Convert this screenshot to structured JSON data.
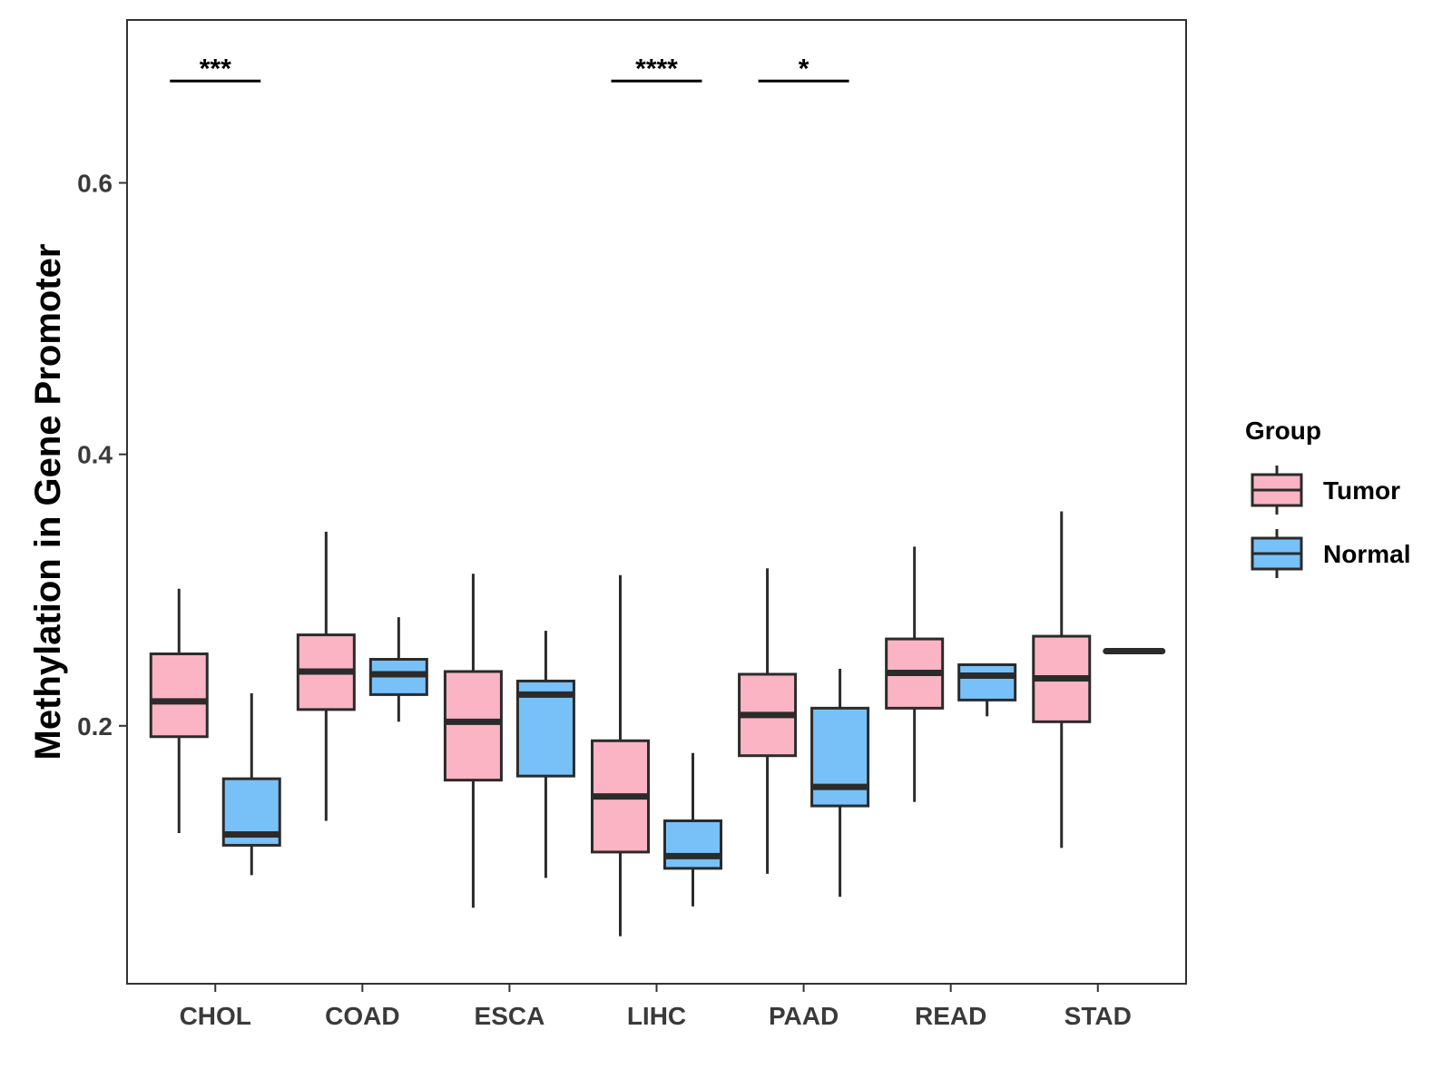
{
  "chart_data": {
    "type": "boxplot",
    "title": "",
    "xlabel": "",
    "ylabel": "Methylation in Gene Promoter",
    "ylim": [
      0.01,
      0.72
    ],
    "yticks": [
      "0.2",
      "0.4",
      "0.6"
    ],
    "ytick_values": [
      0.2,
      0.4,
      0.6
    ],
    "grid": false,
    "categories": [
      "CHOL",
      "COAD",
      "ESCA",
      "LIHC",
      "PAAD",
      "READ",
      "STAD"
    ],
    "colors": {
      "Tumor": "#FBB4C3",
      "Normal": "#78C1F8",
      "outline": "#2B2B2B"
    },
    "legend": {
      "title": "Group",
      "position": "right",
      "entries": [
        "Tumor",
        "Normal"
      ]
    },
    "series": [
      {
        "name": "Tumor",
        "boxes": [
          {
            "category": "CHOL",
            "min": 0.121,
            "q1": 0.192,
            "median": 0.218,
            "q3": 0.253,
            "max": 0.301
          },
          {
            "category": "COAD",
            "min": 0.13,
            "q1": 0.212,
            "median": 0.24,
            "q3": 0.267,
            "max": 0.343
          },
          {
            "category": "ESCA",
            "min": 0.066,
            "q1": 0.16,
            "median": 0.203,
            "q3": 0.24,
            "max": 0.312
          },
          {
            "category": "LIHC",
            "min": 0.045,
            "q1": 0.107,
            "median": 0.148,
            "q3": 0.189,
            "max": 0.311
          },
          {
            "category": "PAAD",
            "min": 0.091,
            "q1": 0.178,
            "median": 0.208,
            "q3": 0.238,
            "max": 0.316
          },
          {
            "category": "READ",
            "min": 0.144,
            "q1": 0.213,
            "median": 0.239,
            "q3": 0.264,
            "max": 0.332
          },
          {
            "category": "STAD",
            "min": 0.11,
            "q1": 0.203,
            "median": 0.235,
            "q3": 0.266,
            "max": 0.358
          }
        ]
      },
      {
        "name": "Normal",
        "boxes": [
          {
            "category": "CHOL",
            "min": 0.09,
            "q1": 0.112,
            "median": 0.12,
            "q3": 0.161,
            "max": 0.224
          },
          {
            "category": "COAD",
            "min": 0.203,
            "q1": 0.223,
            "median": 0.238,
            "q3": 0.249,
            "max": 0.28
          },
          {
            "category": "ESCA",
            "min": 0.088,
            "q1": 0.163,
            "median": 0.223,
            "q3": 0.233,
            "max": 0.27
          },
          {
            "category": "LIHC",
            "min": 0.067,
            "q1": 0.095,
            "median": 0.104,
            "q3": 0.13,
            "max": 0.18
          },
          {
            "category": "PAAD",
            "min": 0.074,
            "q1": 0.141,
            "median": 0.155,
            "q3": 0.213,
            "max": 0.242
          },
          {
            "category": "READ",
            "min": 0.207,
            "q1": 0.219,
            "median": 0.237,
            "q3": 0.245,
            "max": 0.245
          },
          {
            "category": "STAD",
            "min": 0.255,
            "q1": 0.255,
            "median": 0.255,
            "q3": 0.255,
            "max": 0.255
          }
        ]
      }
    ],
    "significance": [
      {
        "category": "CHOL",
        "label": "***",
        "y": 0.675
      },
      {
        "category": "LIHC",
        "label": "****",
        "y": 0.675
      },
      {
        "category": "PAAD",
        "label": "*",
        "y": 0.675
      }
    ]
  }
}
